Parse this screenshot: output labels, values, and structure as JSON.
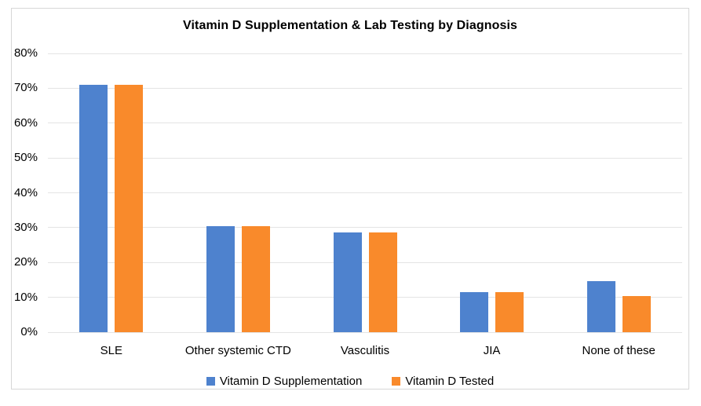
{
  "chart_data": {
    "type": "bar",
    "title": "Vitamin D Supplementation & Lab Testing by Diagnosis",
    "categories": [
      "SLE",
      "Other systemic CTD",
      "Vasculitis",
      "JIA",
      "None of these"
    ],
    "series": [
      {
        "name": "Vitamin D Supplementation",
        "color": "#4e82ce",
        "values": [
          71,
          30.5,
          28.7,
          11.5,
          14.7
        ]
      },
      {
        "name": "Vitamin D Tested",
        "color": "#f98a2b",
        "values": [
          71,
          30.5,
          28.7,
          11.5,
          10.4
        ]
      }
    ],
    "xlabel": "",
    "ylabel": "",
    "ylim": [
      0,
      80
    ],
    "yticks": [
      "0%",
      "10%",
      "20%",
      "30%",
      "40%",
      "50%",
      "60%",
      "70%",
      "80%"
    ],
    "ytick_step": 10,
    "grid": true,
    "legend_position": "bottom",
    "gridline_color": "#e4e4e4",
    "frame_border_color": "#d7d7d7",
    "background_color": "#ffffff"
  }
}
